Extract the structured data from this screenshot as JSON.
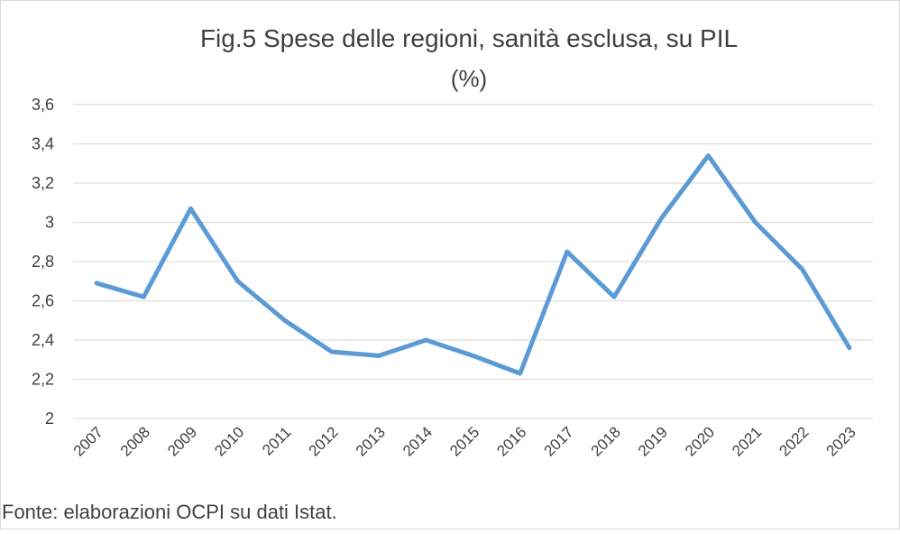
{
  "chart_data": {
    "type": "line",
    "title": "Fig.5 Spese delle regioni, sanità esclusa, su PIL",
    "subtitle": "(%)",
    "source": "Fonte: elaborazioni OCPI su dati Istat.",
    "categories": [
      "2007",
      "2008",
      "2009",
      "2010",
      "2011",
      "2012",
      "2013",
      "2014",
      "2015",
      "2016",
      "2017",
      "2018",
      "2019",
      "2020",
      "2021",
      "2022",
      "2023"
    ],
    "series": [
      {
        "name": "Spese delle regioni, sanità esclusa, su PIL",
        "color": "#5b9bd5",
        "values": [
          2.69,
          2.62,
          3.07,
          2.7,
          2.5,
          2.34,
          2.32,
          2.4,
          2.32,
          2.23,
          2.85,
          2.62,
          3.02,
          3.34,
          3.0,
          2.76,
          2.36
        ]
      }
    ],
    "ylim": [
      2,
      3.6
    ],
    "yticks": [
      2,
      {
        "value": 2.2,
        "label": "2,2"
      },
      {
        "value": 2.4,
        "label": "2,4"
      },
      {
        "value": 2.6,
        "label": "2,6"
      },
      {
        "value": 2.8,
        "label": "2,8"
      },
      3,
      {
        "value": 3.2,
        "label": "3,2"
      },
      {
        "value": 3.4,
        "label": "3,4"
      },
      {
        "value": 3.6,
        "label": "3,6"
      }
    ],
    "grid": true
  }
}
